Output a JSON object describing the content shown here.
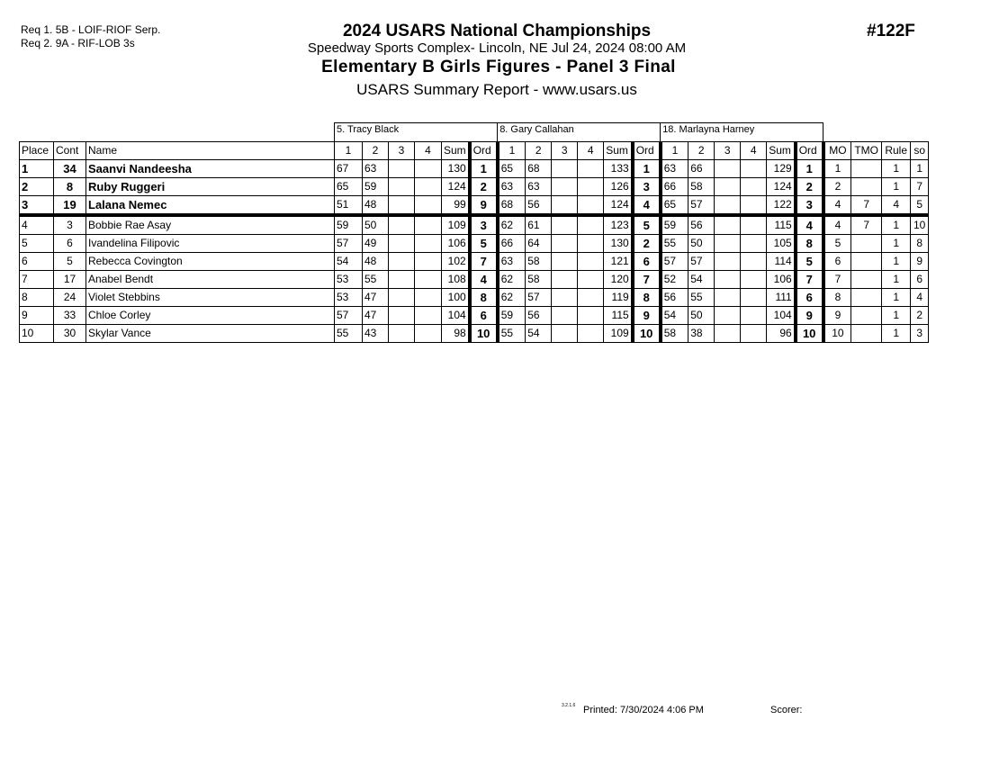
{
  "requirements": [
    "Req  1.  5B - LOIF-RIOF Serp.",
    "Req  2.  9A - RIF-LOB 3s"
  ],
  "header": {
    "title": "2024 USARS National Championships",
    "location": "Speedway Sports Complex- Lincoln, NE  Jul 24, 2024  08:00 AM",
    "event": "Elementary B Girls Figures - Panel 3 Final",
    "report": "USARS Summary Report - www.usars.us",
    "event_number": "#122F"
  },
  "judges": [
    "5.  Tracy Black",
    "8.  Gary Callahan",
    "18.  Marlayna Harney"
  ],
  "columns": {
    "place": "Place",
    "cont": "Cont",
    "name": "Name",
    "judge_cols": [
      "1",
      "2",
      "3",
      "4",
      "Sum",
      "Ord"
    ],
    "mo": "MO",
    "tmo": "TMO",
    "rule": "Rule",
    "so": "so"
  },
  "rows": [
    {
      "place": "1",
      "cont": "34",
      "name": "Saanvi Nandeesha",
      "j": [
        [
          "67",
          "63",
          "",
          "",
          "130",
          "1"
        ],
        [
          "65",
          "68",
          "",
          "",
          "133",
          "1"
        ],
        [
          "63",
          "66",
          "",
          "",
          "129",
          "1"
        ]
      ],
      "mo": "1",
      "tmo": "",
      "rule": "1",
      "so": "1"
    },
    {
      "place": "2",
      "cont": "8",
      "name": "Ruby Ruggeri",
      "j": [
        [
          "65",
          "59",
          "",
          "",
          "124",
          "2"
        ],
        [
          "63",
          "63",
          "",
          "",
          "126",
          "3"
        ],
        [
          "66",
          "58",
          "",
          "",
          "124",
          "2"
        ]
      ],
      "mo": "2",
      "tmo": "",
      "rule": "1",
      "so": "7"
    },
    {
      "place": "3",
      "cont": "19",
      "name": "Lalana Nemec",
      "j": [
        [
          "51",
          "48",
          "",
          "",
          "99",
          "9"
        ],
        [
          "68",
          "56",
          "",
          "",
          "124",
          "4"
        ],
        [
          "65",
          "57",
          "",
          "",
          "122",
          "3"
        ]
      ],
      "mo": "4",
      "tmo": "7",
      "rule": "4",
      "so": "5"
    },
    {
      "place": "4",
      "cont": "3",
      "name": "Bobbie Rae Asay",
      "j": [
        [
          "59",
          "50",
          "",
          "",
          "109",
          "3"
        ],
        [
          "62",
          "61",
          "",
          "",
          "123",
          "5"
        ],
        [
          "59",
          "56",
          "",
          "",
          "115",
          "4"
        ]
      ],
      "mo": "4",
      "tmo": "7",
      "rule": "1",
      "so": "10"
    },
    {
      "place": "5",
      "cont": "6",
      "name": "Ivandelina Filipovic",
      "j": [
        [
          "57",
          "49",
          "",
          "",
          "106",
          "5"
        ],
        [
          "66",
          "64",
          "",
          "",
          "130",
          "2"
        ],
        [
          "55",
          "50",
          "",
          "",
          "105",
          "8"
        ]
      ],
      "mo": "5",
      "tmo": "",
      "rule": "1",
      "so": "8"
    },
    {
      "place": "6",
      "cont": "5",
      "name": "Rebecca Covington",
      "j": [
        [
          "54",
          "48",
          "",
          "",
          "102",
          "7"
        ],
        [
          "63",
          "58",
          "",
          "",
          "121",
          "6"
        ],
        [
          "57",
          "57",
          "",
          "",
          "114",
          "5"
        ]
      ],
      "mo": "6",
      "tmo": "",
      "rule": "1",
      "so": "9"
    },
    {
      "place": "7",
      "cont": "17",
      "name": "Anabel Bendt",
      "j": [
        [
          "53",
          "55",
          "",
          "",
          "108",
          "4"
        ],
        [
          "62",
          "58",
          "",
          "",
          "120",
          "7"
        ],
        [
          "52",
          "54",
          "",
          "",
          "106",
          "7"
        ]
      ],
      "mo": "7",
      "tmo": "",
      "rule": "1",
      "so": "6"
    },
    {
      "place": "8",
      "cont": "24",
      "name": "Violet Stebbins",
      "j": [
        [
          "53",
          "47",
          "",
          "",
          "100",
          "8"
        ],
        [
          "62",
          "57",
          "",
          "",
          "119",
          "8"
        ],
        [
          "56",
          "55",
          "",
          "",
          "111",
          "6"
        ]
      ],
      "mo": "8",
      "tmo": "",
      "rule": "1",
      "so": "4"
    },
    {
      "place": "9",
      "cont": "33",
      "name": "Chloe Corley",
      "j": [
        [
          "57",
          "47",
          "",
          "",
          "104",
          "6"
        ],
        [
          "59",
          "56",
          "",
          "",
          "115",
          "9"
        ],
        [
          "54",
          "50",
          "",
          "",
          "104",
          "9"
        ]
      ],
      "mo": "9",
      "tmo": "",
      "rule": "1",
      "so": "2"
    },
    {
      "place": "10",
      "cont": "30",
      "name": "Skylar Vance",
      "j": [
        [
          "55",
          "43",
          "",
          "",
          "98",
          "10"
        ],
        [
          "55",
          "54",
          "",
          "",
          "109",
          "10"
        ],
        [
          "58",
          "38",
          "",
          "",
          "96",
          "10"
        ]
      ],
      "mo": "10",
      "tmo": "",
      "rule": "1",
      "so": "3"
    }
  ],
  "footer": {
    "version": "3.2.1.6",
    "printed": "Printed:  7/30/2024  4:06 PM",
    "scorer": "Scorer:"
  }
}
